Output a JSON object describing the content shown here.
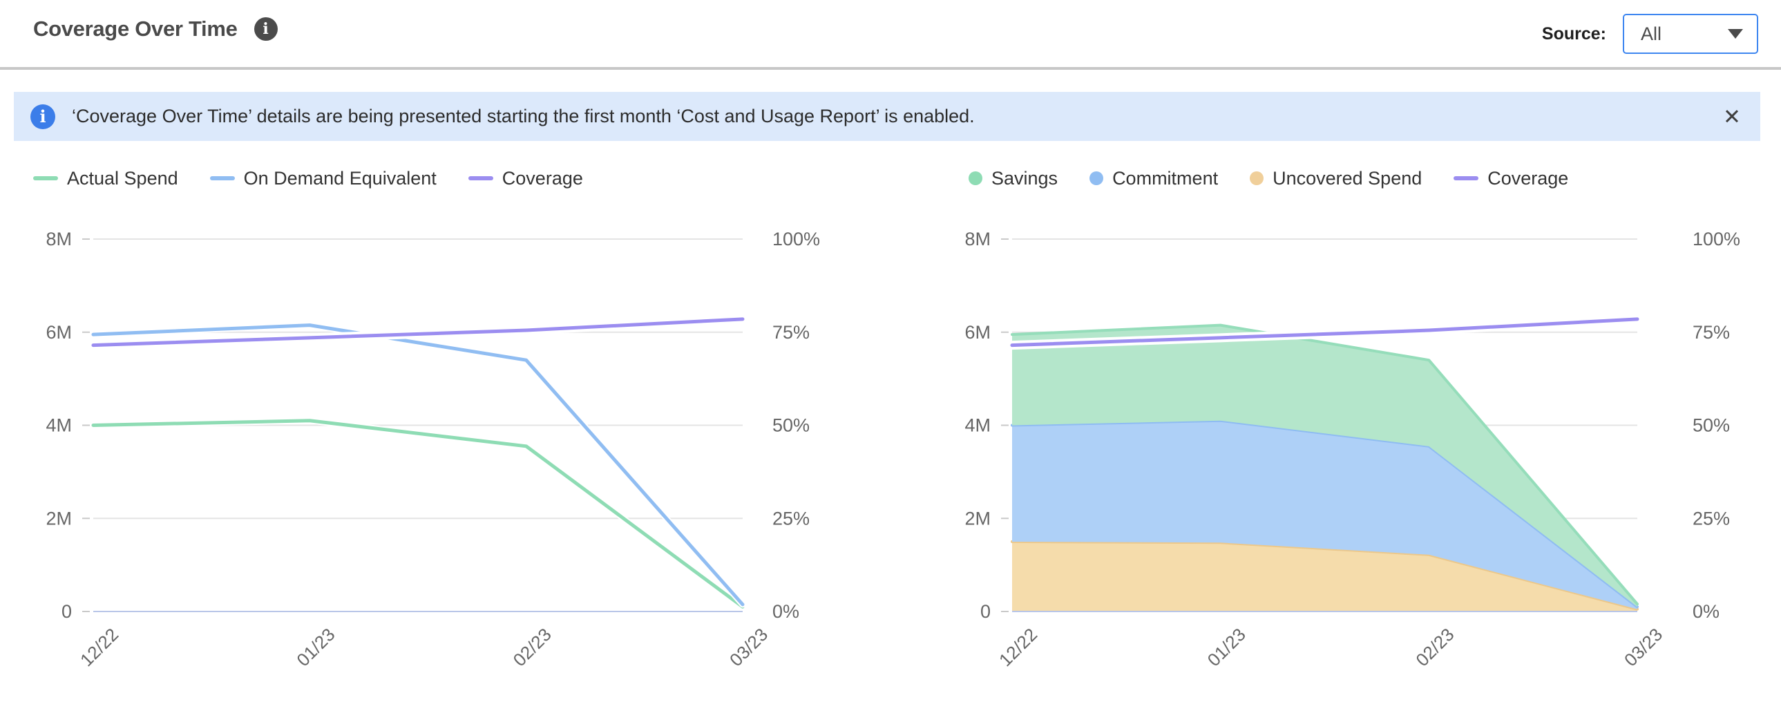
{
  "header": {
    "title": "Coverage Over Time",
    "source_label": "Source:",
    "source_value": "All"
  },
  "icons": {
    "info_glyph": "i",
    "close_glyph": "✕"
  },
  "banner": {
    "text": "‘Coverage Over Time’ details are being presented starting the first month ‘Cost and Usage Report’ is enabled."
  },
  "colors": {
    "accent_blue": "#3e86f0",
    "banner_bg": "#dce9fb",
    "banner_icon": "#3b7de9",
    "grid": "#e4e4e4",
    "zero_axis": "#b9c6e8",
    "green": "#8edcb4",
    "blue": "#90bdf2",
    "purple": "#9b8df0",
    "orange": "#f0cf9a"
  },
  "chart_data": [
    {
      "type": "line",
      "x": [
        "12/22",
        "01/23",
        "02/23",
        "03/23"
      ],
      "left_axis": {
        "ticks": [
          "8M",
          "6M",
          "4M",
          "2M",
          "0"
        ],
        "min": 0,
        "max": 8000000
      },
      "right_axis": {
        "ticks": [
          "100%",
          "75%",
          "50%",
          "25%",
          "0%"
        ],
        "min": 0,
        "max": 100
      },
      "grid": true,
      "legend_position": "top-left",
      "legend": [
        {
          "label": "Actual Spend",
          "swatch": "line",
          "color": "#8edcb4"
        },
        {
          "label": "On Demand Equivalent",
          "swatch": "line",
          "color": "#90bdf2"
        },
        {
          "label": "Coverage",
          "swatch": "line",
          "color": "#9b8df0"
        }
      ],
      "series": [
        {
          "name": "Actual Spend",
          "axis": "left",
          "color": "#8edcb4",
          "values": [
            4000000,
            4100000,
            3550000,
            100000
          ]
        },
        {
          "name": "On Demand Equivalent",
          "axis": "left",
          "color": "#90bdf2",
          "values": [
            5950000,
            6150000,
            5400000,
            150000
          ]
        },
        {
          "name": "Coverage",
          "axis": "right",
          "color": "#9b8df0",
          "values": [
            71.5,
            73.5,
            75.5,
            78.5
          ]
        }
      ]
    },
    {
      "type": "area-stacked",
      "x": [
        "12/22",
        "01/23",
        "02/23",
        "03/23"
      ],
      "left_axis": {
        "ticks": [
          "8M",
          "6M",
          "4M",
          "2M",
          "0"
        ],
        "min": 0,
        "max": 8000000
      },
      "right_axis": {
        "ticks": [
          "100%",
          "75%",
          "50%",
          "25%",
          "0%"
        ],
        "min": 0,
        "max": 100
      },
      "grid": true,
      "legend_position": "top-left",
      "legend": [
        {
          "label": "Savings",
          "swatch": "dot",
          "color": "#8edcb4"
        },
        {
          "label": "Commitment",
          "swatch": "dot",
          "color": "#90bdf2"
        },
        {
          "label": "Uncovered Spend",
          "swatch": "dot",
          "color": "#f0cf9a"
        },
        {
          "label": "Coverage",
          "swatch": "line",
          "color": "#9b8df0"
        }
      ],
      "series": [
        {
          "name": "Uncovered Spend",
          "axis": "left",
          "color": "#ecc88b",
          "fill": "#f5dcab",
          "values": [
            1500000,
            1480000,
            1220000,
            50000
          ]
        },
        {
          "name": "Commitment",
          "axis": "left",
          "color": "#8fbcf2",
          "fill": "#aed0f7",
          "values": [
            2500000,
            2620000,
            2330000,
            50000
          ]
        },
        {
          "name": "Savings",
          "axis": "left",
          "color": "#95ddba",
          "fill": "#b4e6cb",
          "values": [
            1950000,
            2050000,
            1850000,
            60000
          ]
        },
        {
          "name": "Coverage",
          "axis": "right",
          "color": "#9b8df0",
          "values": [
            71.5,
            73.5,
            75.5,
            78.5
          ]
        }
      ]
    }
  ]
}
